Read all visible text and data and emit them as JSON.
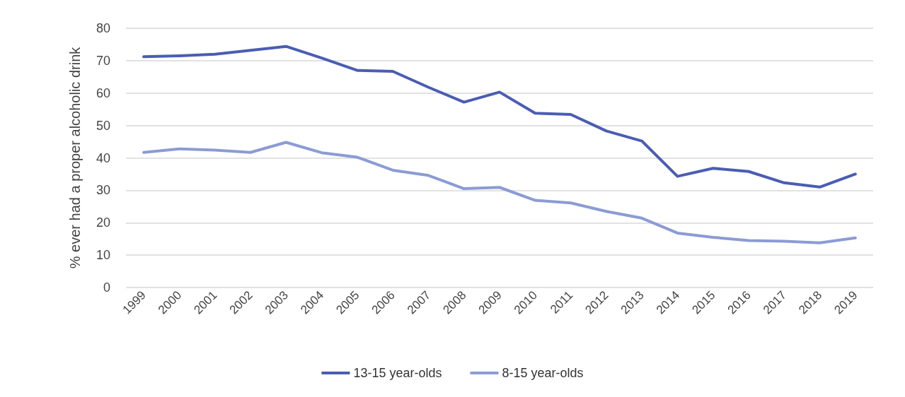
{
  "chart_data": {
    "type": "line",
    "ylabel": "% ever had a proper alcoholic drink",
    "categories": [
      "1999",
      "2000",
      "2001",
      "2002",
      "2003",
      "2004",
      "2005",
      "2006",
      "2007",
      "2008",
      "2009",
      "2010",
      "2011",
      "2012",
      "2013",
      "2014",
      "2015",
      "2016",
      "2017",
      "2018",
      "2019"
    ],
    "series": [
      {
        "name": "13-15 year-olds",
        "color": "#4a5db3",
        "values": [
          71.2,
          71.5,
          72,
          73.2,
          74.4,
          70.8,
          67,
          66.7,
          61.8,
          57.2,
          60.3,
          53.8,
          53.4,
          48.3,
          45.2,
          34.3,
          36.8,
          35.8,
          32.3,
          31,
          35
        ]
      },
      {
        "name": "8-15 year-olds",
        "color": "#8b9bd4",
        "values": [
          41.7,
          42.8,
          42.4,
          41.7,
          44.8,
          41.6,
          40.2,
          36.2,
          34.6,
          30.5,
          30.9,
          26.9,
          26.1,
          23.5,
          21.4,
          16.8,
          15.5,
          14.5,
          14.3,
          13.8,
          15.3
        ]
      }
    ],
    "ylim": [
      0,
      80
    ],
    "yticks": [
      0,
      10,
      20,
      30,
      40,
      50,
      60,
      70,
      80
    ],
    "grid": "y",
    "legend": "bottom",
    "marker": "none",
    "line_style": "solid"
  }
}
